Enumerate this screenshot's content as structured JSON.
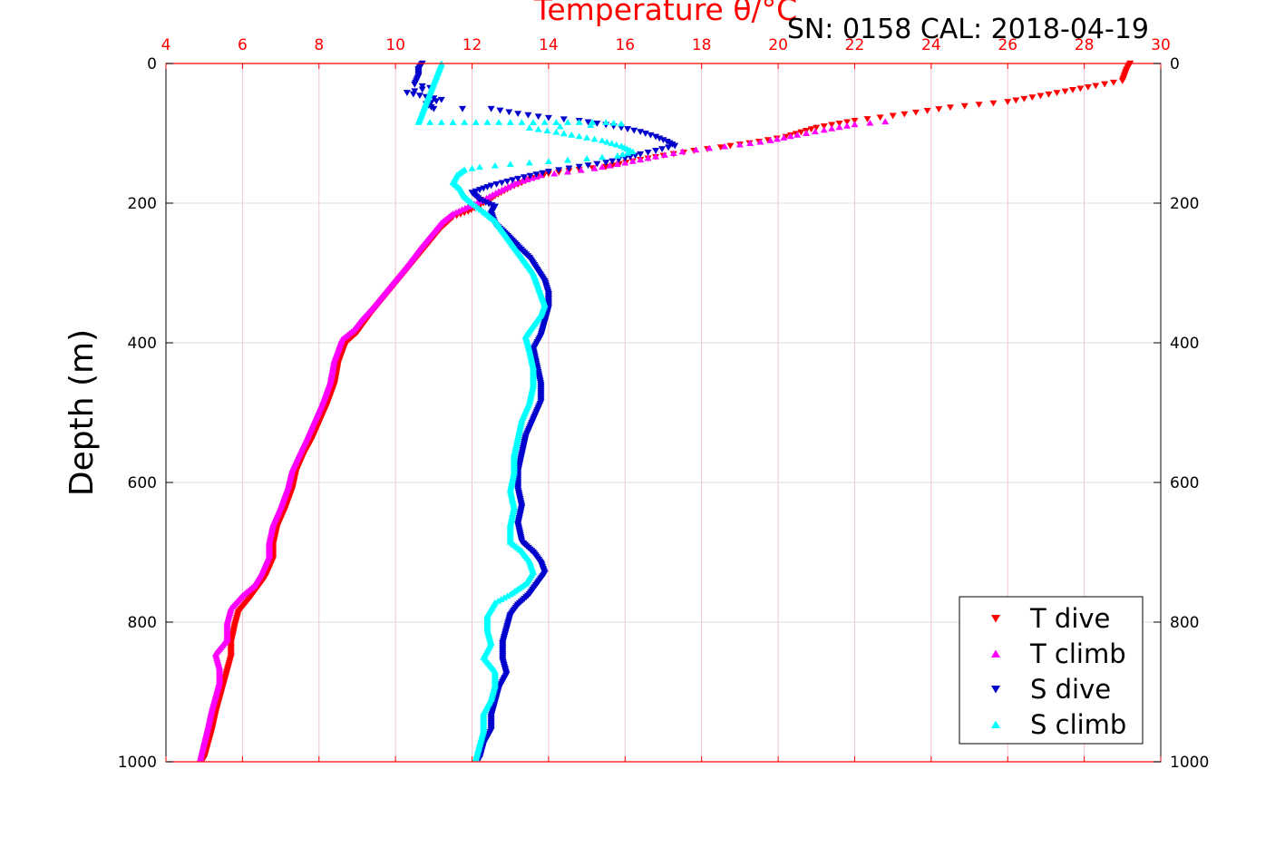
{
  "chart_data": {
    "type": "scatter",
    "title": "Temperature θ/°C",
    "serial_label": "SN: 0158  CAL: 2018-04-19",
    "ylabel": "Depth (m)",
    "xlim": [
      4,
      30
    ],
    "ylim": [
      1000,
      0
    ],
    "x_ticks": [
      4,
      6,
      8,
      10,
      12,
      14,
      16,
      18,
      20,
      22,
      24,
      26,
      28,
      30
    ],
    "y_ticks": [
      0,
      200,
      400,
      600,
      800,
      1000
    ],
    "grid": true,
    "legend_position": "bottom-right",
    "colors": {
      "t_dive": "#ff0000",
      "t_climb": "#ff00ff",
      "s_dive": "#0000cc",
      "s_climb": "#00ffff",
      "top_axis": "#ff0000"
    },
    "series": [
      {
        "name": "T dive",
        "marker": "triangle-down",
        "color": "#ff0000",
        "points": [
          [
            29.2,
            0
          ],
          [
            29.1,
            10
          ],
          [
            29.0,
            25
          ],
          [
            28.3,
            32
          ],
          [
            27.5,
            40
          ],
          [
            26.0,
            55
          ],
          [
            24.5,
            63
          ],
          [
            23.0,
            75
          ],
          [
            22.0,
            82
          ],
          [
            21.0,
            92
          ],
          [
            20.2,
            105
          ],
          [
            19.5,
            112
          ],
          [
            18.5,
            120
          ],
          [
            17.8,
            125
          ],
          [
            17.0,
            132
          ],
          [
            16.2,
            140
          ],
          [
            15.5,
            148
          ],
          [
            14.8,
            152
          ],
          [
            14.0,
            158
          ],
          [
            13.5,
            166
          ],
          [
            13.0,
            178
          ],
          [
            12.6,
            190
          ],
          [
            12.3,
            200
          ],
          [
            11.9,
            212
          ],
          [
            11.5,
            220
          ],
          [
            11.2,
            235
          ],
          [
            10.9,
            255
          ],
          [
            10.6,
            275
          ],
          [
            10.3,
            295
          ],
          [
            10.0,
            315
          ],
          [
            9.7,
            335
          ],
          [
            9.4,
            355
          ],
          [
            9.2,
            370
          ],
          [
            9.0,
            385
          ],
          [
            8.7,
            400
          ],
          [
            8.5,
            430
          ],
          [
            8.4,
            460
          ],
          [
            8.2,
            490
          ],
          [
            8.0,
            515
          ],
          [
            7.8,
            540
          ],
          [
            7.6,
            560
          ],
          [
            7.4,
            585
          ],
          [
            7.3,
            610
          ],
          [
            7.1,
            640
          ],
          [
            6.9,
            665
          ],
          [
            6.8,
            690
          ],
          [
            6.8,
            710
          ],
          [
            6.6,
            735
          ],
          [
            6.4,
            750
          ],
          [
            6.2,
            765
          ],
          [
            5.9,
            785
          ],
          [
            5.8,
            805
          ],
          [
            5.7,
            830
          ],
          [
            5.7,
            850
          ],
          [
            5.6,
            870
          ],
          [
            5.5,
            890
          ],
          [
            5.4,
            910
          ],
          [
            5.3,
            930
          ],
          [
            5.2,
            955
          ],
          [
            5.1,
            975
          ],
          [
            5.0,
            995
          ]
        ]
      },
      {
        "name": "T climb",
        "marker": "triangle-up",
        "color": "#ff00ff",
        "points": [
          [
            22.8,
            83
          ],
          [
            22.0,
            87
          ],
          [
            21.2,
            95
          ],
          [
            20.5,
            102
          ],
          [
            19.8,
            110
          ],
          [
            19.0,
            116
          ],
          [
            18.2,
            121
          ],
          [
            17.5,
            126
          ],
          [
            16.8,
            133
          ],
          [
            16.0,
            142
          ],
          [
            15.2,
            150
          ],
          [
            14.5,
            155
          ],
          [
            13.8,
            160
          ],
          [
            13.2,
            170
          ],
          [
            12.7,
            183
          ],
          [
            12.3,
            195
          ],
          [
            11.9,
            205
          ],
          [
            11.5,
            215
          ],
          [
            11.2,
            228
          ],
          [
            10.9,
            248
          ],
          [
            10.6,
            268
          ],
          [
            10.3,
            290
          ],
          [
            10.0,
            310
          ],
          [
            9.7,
            330
          ],
          [
            9.4,
            350
          ],
          [
            9.1,
            368
          ],
          [
            8.9,
            382
          ],
          [
            8.6,
            395
          ],
          [
            8.4,
            425
          ],
          [
            8.3,
            455
          ],
          [
            8.1,
            485
          ],
          [
            7.9,
            510
          ],
          [
            7.7,
            535
          ],
          [
            7.5,
            558
          ],
          [
            7.3,
            582
          ],
          [
            7.2,
            605
          ],
          [
            7.0,
            635
          ],
          [
            6.8,
            660
          ],
          [
            6.7,
            685
          ],
          [
            6.7,
            705
          ],
          [
            6.5,
            730
          ],
          [
            6.3,
            748
          ],
          [
            6.0,
            762
          ],
          [
            5.7,
            780
          ],
          [
            5.6,
            800
          ],
          [
            5.6,
            825
          ],
          [
            5.3,
            845
          ],
          [
            5.4,
            865
          ],
          [
            5.4,
            885
          ],
          [
            5.3,
            905
          ],
          [
            5.2,
            925
          ],
          [
            5.1,
            950
          ],
          [
            5.0,
            972
          ],
          [
            4.9,
            995
          ]
        ]
      },
      {
        "name": "S dive",
        "marker": "triangle-down",
        "color": "#0000cc",
        "points": [
          [
            10.7,
            0
          ],
          [
            10.6,
            8
          ],
          [
            10.6,
            18
          ],
          [
            10.5,
            30
          ],
          [
            10.9,
            35
          ],
          [
            10.3,
            42
          ],
          [
            10.8,
            48
          ],
          [
            11.2,
            52
          ],
          [
            10.8,
            58
          ],
          [
            11.0,
            65
          ],
          [
            12.5,
            65
          ],
          [
            13.2,
            72
          ],
          [
            14.0,
            78
          ],
          [
            14.8,
            82
          ],
          [
            15.5,
            88
          ],
          [
            15.9,
            92
          ],
          [
            16.4,
            98
          ],
          [
            16.8,
            105
          ],
          [
            17.1,
            112
          ],
          [
            17.3,
            118
          ],
          [
            16.8,
            125
          ],
          [
            16.4,
            130
          ],
          [
            16.0,
            136
          ],
          [
            15.5,
            142
          ],
          [
            14.8,
            148
          ],
          [
            14.0,
            155
          ],
          [
            13.2,
            165
          ],
          [
            12.5,
            175
          ],
          [
            12.0,
            185
          ],
          [
            12.2,
            195
          ],
          [
            12.6,
            205
          ],
          [
            12.5,
            215
          ],
          [
            12.6,
            230
          ],
          [
            12.9,
            245
          ],
          [
            13.2,
            262
          ],
          [
            13.5,
            278
          ],
          [
            13.7,
            295
          ],
          [
            13.9,
            312
          ],
          [
            14.0,
            330
          ],
          [
            14.0,
            350
          ],
          [
            13.9,
            370
          ],
          [
            13.8,
            390
          ],
          [
            13.6,
            410
          ],
          [
            13.7,
            435
          ],
          [
            13.8,
            460
          ],
          [
            13.8,
            485
          ],
          [
            13.6,
            510
          ],
          [
            13.4,
            535
          ],
          [
            13.3,
            560
          ],
          [
            13.2,
            585
          ],
          [
            13.2,
            610
          ],
          [
            13.3,
            635
          ],
          [
            13.2,
            660
          ],
          [
            13.3,
            685
          ],
          [
            13.6,
            700
          ],
          [
            13.8,
            715
          ],
          [
            13.9,
            730
          ],
          [
            13.7,
            745
          ],
          [
            13.5,
            760
          ],
          [
            13.2,
            775
          ],
          [
            13.0,
            790
          ],
          [
            12.9,
            810
          ],
          [
            12.8,
            830
          ],
          [
            12.8,
            855
          ],
          [
            12.9,
            875
          ],
          [
            12.7,
            895
          ],
          [
            12.6,
            915
          ],
          [
            12.5,
            935
          ],
          [
            12.5,
            955
          ],
          [
            12.3,
            975
          ],
          [
            12.2,
            995
          ]
        ]
      },
      {
        "name": "S climb",
        "marker": "triangle-up",
        "color": "#00ffff",
        "points": [
          [
            11.2,
            0
          ],
          [
            10.6,
            84
          ],
          [
            11.2,
            84
          ],
          [
            11.8,
            84
          ],
          [
            12.4,
            84
          ],
          [
            13.0,
            84
          ],
          [
            13.6,
            84
          ],
          [
            14.2,
            84
          ],
          [
            14.8,
            84
          ],
          [
            15.5,
            84
          ],
          [
            15.9,
            86
          ],
          [
            13.5,
            92
          ],
          [
            14.2,
            98
          ],
          [
            14.8,
            104
          ],
          [
            15.4,
            110
          ],
          [
            15.9,
            118
          ],
          [
            16.2,
            126
          ],
          [
            15.8,
            132
          ],
          [
            15.0,
            136
          ],
          [
            14.0,
            140
          ],
          [
            13.0,
            144
          ],
          [
            12.2,
            148
          ],
          [
            11.8,
            152
          ],
          [
            11.6,
            160
          ],
          [
            11.5,
            170
          ],
          [
            11.7,
            180
          ],
          [
            11.8,
            190
          ],
          [
            12.0,
            200
          ],
          [
            12.3,
            212
          ],
          [
            12.6,
            225
          ],
          [
            12.8,
            240
          ],
          [
            13.0,
            255
          ],
          [
            13.2,
            270
          ],
          [
            13.4,
            285
          ],
          [
            13.6,
            300
          ],
          [
            13.7,
            315
          ],
          [
            13.8,
            330
          ],
          [
            13.9,
            345
          ],
          [
            13.8,
            360
          ],
          [
            13.6,
            375
          ],
          [
            13.4,
            390
          ],
          [
            13.5,
            410
          ],
          [
            13.6,
            435
          ],
          [
            13.6,
            460
          ],
          [
            13.5,
            485
          ],
          [
            13.3,
            510
          ],
          [
            13.2,
            535
          ],
          [
            13.1,
            560
          ],
          [
            13.1,
            585
          ],
          [
            13.0,
            610
          ],
          [
            13.1,
            635
          ],
          [
            13.0,
            660
          ],
          [
            13.0,
            685
          ],
          [
            13.3,
            698
          ],
          [
            13.5,
            712
          ],
          [
            13.6,
            728
          ],
          [
            13.4,
            745
          ],
          [
            13.0,
            760
          ],
          [
            12.6,
            772
          ],
          [
            12.4,
            790
          ],
          [
            12.4,
            810
          ],
          [
            12.5,
            830
          ],
          [
            12.3,
            850
          ],
          [
            12.6,
            870
          ],
          [
            12.6,
            890
          ],
          [
            12.5,
            910
          ],
          [
            12.3,
            930
          ],
          [
            12.3,
            955
          ],
          [
            12.2,
            975
          ],
          [
            12.1,
            995
          ]
        ]
      }
    ]
  }
}
